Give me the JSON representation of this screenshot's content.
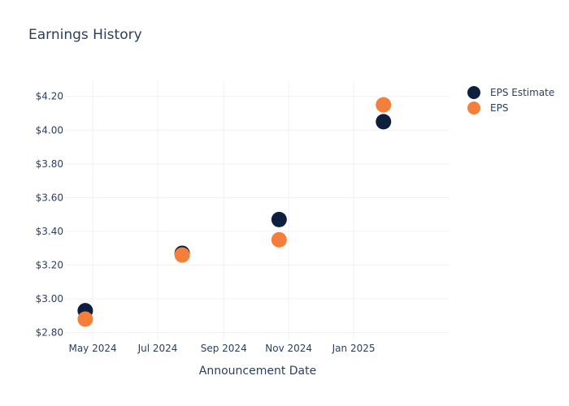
{
  "chart_data": {
    "type": "scatter",
    "title": "Earnings History",
    "xlabel": "Announcement Date",
    "ylabel": "",
    "x_type": "date",
    "xlim": [
      "2024-04-05",
      "2025-04-01"
    ],
    "ylim": [
      2.75,
      4.29
    ],
    "x_ticks": [
      {
        "date": "2024-05-01",
        "label": "May 2024"
      },
      {
        "date": "2024-07-01",
        "label": "Jul 2024"
      },
      {
        "date": "2024-09-01",
        "label": "Sep 2024"
      },
      {
        "date": "2024-11-01",
        "label": "Nov 2024"
      },
      {
        "date": "2025-01-01",
        "label": "Jan 2025"
      }
    ],
    "y_ticks": [
      {
        "value": 2.8,
        "label": "$2.80"
      },
      {
        "value": 3.0,
        "label": "$3.00"
      },
      {
        "value": 3.2,
        "label": "$3.20"
      },
      {
        "value": 3.4,
        "label": "$3.40"
      },
      {
        "value": 3.6,
        "label": "$3.60"
      },
      {
        "value": 3.8,
        "label": "$3.80"
      },
      {
        "value": 4.0,
        "label": "$4.00"
      },
      {
        "value": 4.2,
        "label": "$4.20"
      }
    ],
    "grid": true,
    "legend_position": "top-right",
    "series": [
      {
        "name": "EPS Estimate",
        "color": "#0d1f3c",
        "points": [
          {
            "x": "2024-04-24",
            "y": 2.93
          },
          {
            "x": "2024-07-24",
            "y": 3.27
          },
          {
            "x": "2024-10-23",
            "y": 3.47
          },
          {
            "x": "2025-01-29",
            "y": 4.05
          }
        ]
      },
      {
        "name": "EPS",
        "color": "#f47f3a",
        "points": [
          {
            "x": "2024-04-24",
            "y": 2.88
          },
          {
            "x": "2024-07-24",
            "y": 3.26
          },
          {
            "x": "2024-10-23",
            "y": 3.35
          },
          {
            "x": "2025-01-29",
            "y": 4.15
          }
        ]
      }
    ]
  }
}
